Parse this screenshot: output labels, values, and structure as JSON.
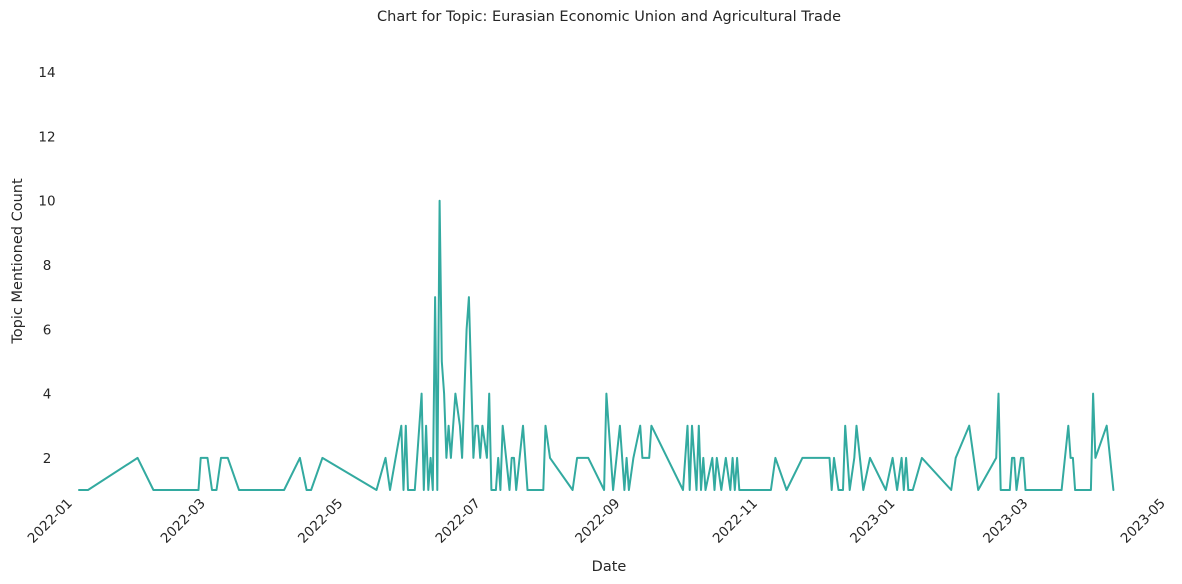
{
  "chart_data": {
    "type": "line",
    "title": "Chart for Topic: Eurasian Economic Union and Agricultural Trade",
    "xlabel": "Date",
    "ylabel": "Topic Mentioned Count",
    "x_range": [
      "2022-01-01",
      "2023-05-01"
    ],
    "ylim": [
      1,
      15
    ],
    "y_ticks": [
      2,
      4,
      6,
      8,
      10,
      12,
      14
    ],
    "x_ticks": [
      "2022-01",
      "2022-03",
      "2022-05",
      "2022-07",
      "2022-09",
      "2022-11",
      "2023-01",
      "2023-03",
      "2023-05"
    ],
    "grid": false,
    "line_color": "#33aaa0",
    "series": [
      {
        "x": [
          "2022-01-05",
          "2022-01-09",
          "2022-01-31",
          "2022-02-07",
          "2022-02-27",
          "2022-02-28",
          "2022-03-03",
          "2022-03-05",
          "2022-03-07",
          "2022-03-09",
          "2022-03-12",
          "2022-03-17",
          "2022-03-26",
          "2022-04-06",
          "2022-04-13",
          "2022-04-16",
          "2022-04-18",
          "2022-04-23",
          "2022-05-17",
          "2022-05-21",
          "2022-05-23",
          "2022-05-28",
          "2022-05-29",
          "2022-05-30",
          "2022-05-31",
          "2022-06-03",
          "2022-06-04",
          "2022-06-06",
          "2022-06-07",
          "2022-06-08",
          "2022-06-09",
          "2022-06-10",
          "2022-06-11",
          "2022-06-12",
          "2022-06-13",
          "2022-06-14",
          "2022-06-15",
          "2022-06-16",
          "2022-06-17",
          "2022-06-18",
          "2022-06-19",
          "2022-06-21",
          "2022-06-23",
          "2022-06-24",
          "2022-06-26",
          "2022-06-27",
          "2022-06-29",
          "2022-06-30",
          "2022-07-01",
          "2022-07-02",
          "2022-07-03",
          "2022-07-05",
          "2022-07-06",
          "2022-07-07",
          "2022-07-08",
          "2022-07-09",
          "2022-07-10",
          "2022-07-11",
          "2022-07-12",
          "2022-07-15",
          "2022-07-16",
          "2022-07-17",
          "2022-07-18",
          "2022-07-21",
          "2022-07-23",
          "2022-07-28",
          "2022-07-30",
          "2022-07-31",
          "2022-08-02",
          "2022-08-12",
          "2022-08-14",
          "2022-08-17",
          "2022-08-19",
          "2022-08-26",
          "2022-08-27",
          "2022-08-30",
          "2022-09-02",
          "2022-09-04",
          "2022-09-05",
          "2022-09-06",
          "2022-09-08",
          "2022-09-11",
          "2022-09-12",
          "2022-09-14",
          "2022-09-15",
          "2022-09-16",
          "2022-09-30",
          "2022-10-02",
          "2022-10-03",
          "2022-10-04",
          "2022-10-06",
          "2022-10-07",
          "2022-10-08",
          "2022-10-09",
          "2022-10-10",
          "2022-10-13",
          "2022-10-14",
          "2022-10-15",
          "2022-10-17",
          "2022-10-19",
          "2022-10-21",
          "2022-10-22",
          "2022-10-23",
          "2022-10-24",
          "2022-10-25",
          "2022-11-08",
          "2022-11-10",
          "2022-11-15",
          "2022-11-22",
          "2022-12-04",
          "2022-12-05",
          "2022-12-06",
          "2022-12-08",
          "2022-12-10",
          "2022-12-11",
          "2022-12-13",
          "2022-12-15",
          "2022-12-16",
          "2022-12-19",
          "2022-12-22",
          "2022-12-29",
          "2023-01-01",
          "2023-01-03",
          "2023-01-05",
          "2023-01-06",
          "2023-01-07",
          "2023-01-08",
          "2023-01-10",
          "2023-01-14",
          "2023-01-27",
          "2023-01-29",
          "2023-02-04",
          "2023-02-08",
          "2023-02-16",
          "2023-02-17",
          "2023-02-18",
          "2023-02-22",
          "2023-02-23",
          "2023-02-24",
          "2023-02-25",
          "2023-02-27",
          "2023-02-28",
          "2023-03-01",
          "2023-03-17",
          "2023-03-20",
          "2023-03-21",
          "2023-03-22",
          "2023-03-23",
          "2023-03-30",
          "2023-03-31",
          "2023-04-01",
          "2023-04-06",
          "2023-04-09"
        ],
        "values": [
          1,
          1,
          2,
          1,
          1,
          2,
          2,
          1,
          1,
          2,
          2,
          1,
          1,
          1,
          2,
          1,
          1,
          2,
          1,
          2,
          1,
          3,
          1,
          3,
          1,
          1,
          2,
          4,
          1,
          3,
          1,
          2,
          1,
          7,
          1,
          10,
          5,
          4,
          2,
          3,
          2,
          4,
          3,
          2,
          6,
          7,
          2,
          3,
          3,
          2,
          3,
          2,
          4,
          1,
          1,
          1,
          2,
          1,
          3,
          1,
          2,
          2,
          1,
          3,
          1,
          1,
          1,
          3,
          2,
          1,
          2,
          2,
          2,
          1,
          4,
          1,
          3,
          1,
          2,
          1,
          2,
          3,
          2,
          2,
          2,
          3,
          1,
          3,
          1,
          3,
          1,
          3,
          1,
          2,
          1,
          2,
          1,
          2,
          1,
          2,
          1,
          2,
          1,
          2,
          1,
          1,
          2,
          1,
          2,
          2,
          1,
          2,
          1,
          1,
          3,
          1,
          2,
          3,
          1,
          2,
          1,
          2,
          1,
          2,
          1,
          2,
          1,
          1,
          2,
          1,
          2,
          3,
          1,
          2,
          4,
          1,
          1,
          2,
          2,
          1,
          2,
          2,
          1,
          1,
          3,
          2,
          2,
          1,
          1,
          4,
          2,
          3,
          1
        ]
      }
    ]
  }
}
